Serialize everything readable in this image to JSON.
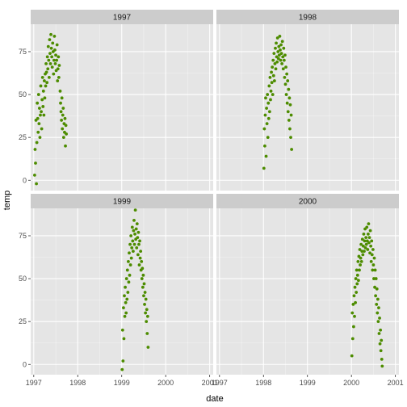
{
  "chart_data": {
    "type": "scatter",
    "title": "",
    "xlabel": "date",
    "ylabel": "temp",
    "xlim": [
      1996.93,
      2001.08
    ],
    "ylim": [
      -6,
      91
    ],
    "x_ticks": [
      1997,
      1998,
      1999,
      2000,
      2001
    ],
    "y_ticks": [
      0,
      25,
      50,
      75
    ],
    "grid": true,
    "point_color": "#4d8c00",
    "panel_bg": "#e5e5e5",
    "strip_bg": "#cccccc",
    "grid_color": "#ffffff",
    "facets": [
      {
        "label": "1997",
        "points": [
          [
            1997.02,
            3
          ],
          [
            1997.03,
            18
          ],
          [
            1997.04,
            10
          ],
          [
            1997.05,
            35
          ],
          [
            1997.06,
            -2
          ],
          [
            1997.07,
            22
          ],
          [
            1997.08,
            45
          ],
          [
            1997.09,
            36
          ],
          [
            1997.1,
            28
          ],
          [
            1997.11,
            50
          ],
          [
            1997.12,
            33
          ],
          [
            1997.13,
            42
          ],
          [
            1997.14,
            25
          ],
          [
            1997.15,
            38
          ],
          [
            1997.16,
            55
          ],
          [
            1997.17,
            40
          ],
          [
            1997.18,
            30
          ],
          [
            1997.19,
            47
          ],
          [
            1997.2,
            60
          ],
          [
            1997.21,
            43
          ],
          [
            1997.22,
            52
          ],
          [
            1997.23,
            38
          ],
          [
            1997.24,
            58
          ],
          [
            1997.25,
            48
          ],
          [
            1997.26,
            62
          ],
          [
            1997.27,
            55
          ],
          [
            1997.28,
            68
          ],
          [
            1997.29,
            63
          ],
          [
            1997.3,
            57
          ],
          [
            1997.31,
            72
          ],
          [
            1997.32,
            65
          ],
          [
            1997.33,
            78
          ],
          [
            1997.34,
            70
          ],
          [
            1997.35,
            60
          ],
          [
            1997.36,
            82
          ],
          [
            1997.37,
            74
          ],
          [
            1997.38,
            68
          ],
          [
            1997.39,
            85
          ],
          [
            1997.4,
            77
          ],
          [
            1997.41,
            72
          ],
          [
            1997.42,
            66
          ],
          [
            1997.43,
            80
          ],
          [
            1997.44,
            75
          ],
          [
            1997.45,
            62
          ],
          [
            1997.46,
            70
          ],
          [
            1997.47,
            84
          ],
          [
            1997.48,
            76
          ],
          [
            1997.49,
            68
          ],
          [
            1997.5,
            73
          ],
          [
            1997.51,
            64
          ],
          [
            1997.52,
            70
          ],
          [
            1997.53,
            79
          ],
          [
            1997.54,
            58
          ],
          [
            1997.55,
            65
          ],
          [
            1997.56,
            72
          ],
          [
            1997.57,
            60
          ],
          [
            1997.58,
            67
          ],
          [
            1997.6,
            52
          ],
          [
            1997.61,
            45
          ],
          [
            1997.62,
            40
          ],
          [
            1997.63,
            35
          ],
          [
            1997.64,
            48
          ],
          [
            1997.65,
            30
          ],
          [
            1997.66,
            38
          ],
          [
            1997.67,
            42
          ],
          [
            1997.68,
            25
          ],
          [
            1997.69,
            33
          ],
          [
            1997.7,
            28
          ],
          [
            1997.71,
            36
          ],
          [
            1997.72,
            20
          ],
          [
            1997.73,
            32
          ],
          [
            1997.74,
            27
          ]
        ]
      },
      {
        "label": "1998",
        "points": [
          [
            1998.01,
            7
          ],
          [
            1998.02,
            30
          ],
          [
            1998.03,
            20
          ],
          [
            1998.04,
            38
          ],
          [
            1998.05,
            48
          ],
          [
            1998.06,
            14
          ],
          [
            1998.07,
            42
          ],
          [
            1998.08,
            33
          ],
          [
            1998.09,
            50
          ],
          [
            1998.1,
            25
          ],
          [
            1998.11,
            45
          ],
          [
            1998.12,
            36
          ],
          [
            1998.13,
            55
          ],
          [
            1998.14,
            40
          ],
          [
            1998.15,
            60
          ],
          [
            1998.16,
            47
          ],
          [
            1998.17,
            52
          ],
          [
            1998.18,
            63
          ],
          [
            1998.19,
            57
          ],
          [
            1998.2,
            66
          ],
          [
            1998.21,
            50
          ],
          [
            1998.22,
            70
          ],
          [
            1998.23,
            61
          ],
          [
            1998.24,
            74
          ],
          [
            1998.25,
            58
          ],
          [
            1998.26,
            68
          ],
          [
            1998.27,
            77
          ],
          [
            1998.28,
            65
          ],
          [
            1998.29,
            80
          ],
          [
            1998.3,
            72
          ],
          [
            1998.31,
            69
          ],
          [
            1998.32,
            83
          ],
          [
            1998.33,
            75
          ],
          [
            1998.34,
            71
          ],
          [
            1998.35,
            78
          ],
          [
            1998.36,
            73
          ],
          [
            1998.37,
            84
          ],
          [
            1998.38,
            76
          ],
          [
            1998.39,
            70
          ],
          [
            1998.4,
            79
          ],
          [
            1998.41,
            74
          ],
          [
            1998.42,
            68
          ],
          [
            1998.43,
            81
          ],
          [
            1998.44,
            72
          ],
          [
            1998.45,
            65
          ],
          [
            1998.46,
            77
          ],
          [
            1998.47,
            70
          ],
          [
            1998.48,
            60
          ],
          [
            1998.49,
            73
          ],
          [
            1998.5,
            56
          ],
          [
            1998.51,
            66
          ],
          [
            1998.52,
            50
          ],
          [
            1998.53,
            62
          ],
          [
            1998.54,
            45
          ],
          [
            1998.55,
            58
          ],
          [
            1998.56,
            40
          ],
          [
            1998.57,
            53
          ],
          [
            1998.58,
            35
          ],
          [
            1998.59,
            48
          ],
          [
            1998.6,
            30
          ],
          [
            1998.61,
            44
          ],
          [
            1998.62,
            25
          ],
          [
            1998.63,
            38
          ],
          [
            1998.64,
            18
          ]
        ]
      },
      {
        "label": "1999",
        "points": [
          [
            1999.01,
            -3
          ],
          [
            1999.02,
            20
          ],
          [
            1999.03,
            2
          ],
          [
            1999.04,
            33
          ],
          [
            1999.05,
            15
          ],
          [
            1999.06,
            40
          ],
          [
            1999.07,
            28
          ],
          [
            1999.08,
            45
          ],
          [
            1999.09,
            36
          ],
          [
            1999.1,
            30
          ],
          [
            1999.11,
            50
          ],
          [
            1999.12,
            38
          ],
          [
            1999.13,
            55
          ],
          [
            1999.14,
            42
          ],
          [
            1999.15,
            60
          ],
          [
            1999.16,
            48
          ],
          [
            1999.17,
            65
          ],
          [
            1999.18,
            52
          ],
          [
            1999.19,
            70
          ],
          [
            1999.2,
            58
          ],
          [
            1999.21,
            75
          ],
          [
            1999.22,
            62
          ],
          [
            1999.23,
            68
          ],
          [
            1999.24,
            80
          ],
          [
            1999.25,
            72
          ],
          [
            1999.26,
            66
          ],
          [
            1999.27,
            78
          ],
          [
            1999.28,
            84
          ],
          [
            1999.29,
            70
          ],
          [
            1999.3,
            76
          ],
          [
            1999.31,
            90
          ],
          [
            1999.32,
            73
          ],
          [
            1999.33,
            79
          ],
          [
            1999.34,
            68
          ],
          [
            1999.35,
            82
          ],
          [
            1999.36,
            74
          ],
          [
            1999.37,
            64
          ],
          [
            1999.38,
            77
          ],
          [
            1999.39,
            70
          ],
          [
            1999.4,
            58
          ],
          [
            1999.41,
            72
          ],
          [
            1999.42,
            62
          ],
          [
            1999.43,
            66
          ],
          [
            1999.44,
            55
          ],
          [
            1999.45,
            60
          ],
          [
            1999.46,
            50
          ],
          [
            1999.47,
            56
          ],
          [
            1999.48,
            45
          ],
          [
            1999.49,
            52
          ],
          [
            1999.5,
            40
          ],
          [
            1999.51,
            47
          ],
          [
            1999.52,
            35
          ],
          [
            1999.53,
            42
          ],
          [
            1999.54,
            30
          ],
          [
            1999.55,
            38
          ],
          [
            1999.56,
            25
          ],
          [
            1999.57,
            32
          ],
          [
            1999.58,
            18
          ],
          [
            1999.59,
            28
          ],
          [
            1999.6,
            10
          ]
        ]
      },
      {
        "label": "2000",
        "points": [
          [
            2000.01,
            5
          ],
          [
            2000.02,
            30
          ],
          [
            2000.03,
            15
          ],
          [
            2000.04,
            35
          ],
          [
            2000.05,
            22
          ],
          [
            2000.06,
            40
          ],
          [
            2000.07,
            28
          ],
          [
            2000.08,
            45
          ],
          [
            2000.09,
            36
          ],
          [
            2000.1,
            50
          ],
          [
            2000.11,
            42
          ],
          [
            2000.12,
            55
          ],
          [
            2000.13,
            47
          ],
          [
            2000.14,
            52
          ],
          [
            2000.15,
            60
          ],
          [
            2000.16,
            49
          ],
          [
            2000.17,
            63
          ],
          [
            2000.18,
            55
          ],
          [
            2000.19,
            67
          ],
          [
            2000.2,
            58
          ],
          [
            2000.21,
            62
          ],
          [
            2000.22,
            70
          ],
          [
            2000.23,
            60
          ],
          [
            2000.24,
            66
          ],
          [
            2000.25,
            73
          ],
          [
            2000.26,
            64
          ],
          [
            2000.27,
            69
          ],
          [
            2000.28,
            76
          ],
          [
            2000.29,
            66
          ],
          [
            2000.3,
            72
          ],
          [
            2000.31,
            79
          ],
          [
            2000.32,
            68
          ],
          [
            2000.33,
            74
          ],
          [
            2000.34,
            70
          ],
          [
            2000.35,
            80
          ],
          [
            2000.36,
            72
          ],
          [
            2000.37,
            67
          ],
          [
            2000.38,
            76
          ],
          [
            2000.39,
            82
          ],
          [
            2000.4,
            71
          ],
          [
            2000.41,
            74
          ],
          [
            2000.42,
            65
          ],
          [
            2000.43,
            78
          ],
          [
            2000.44,
            69
          ],
          [
            2000.45,
            60
          ],
          [
            2000.46,
            72
          ],
          [
            2000.47,
            64
          ],
          [
            2000.48,
            55
          ],
          [
            2000.49,
            67
          ],
          [
            2000.5,
            58
          ],
          [
            2000.51,
            50
          ],
          [
            2000.52,
            62
          ],
          [
            2000.53,
            45
          ],
          [
            2000.54,
            55
          ],
          [
            2000.55,
            40
          ],
          [
            2000.56,
            50
          ],
          [
            2000.57,
            35
          ],
          [
            2000.58,
            44
          ],
          [
            2000.59,
            30
          ],
          [
            2000.6,
            38
          ],
          [
            2000.61,
            25
          ],
          [
            2000.62,
            33
          ],
          [
            2000.63,
            18
          ],
          [
            2000.64,
            27
          ],
          [
            2000.65,
            12
          ],
          [
            2000.66,
            20
          ],
          [
            2000.67,
            8
          ],
          [
            2000.68,
            14
          ],
          [
            2000.69,
            3
          ],
          [
            2000.7,
            -1
          ]
        ]
      }
    ]
  }
}
